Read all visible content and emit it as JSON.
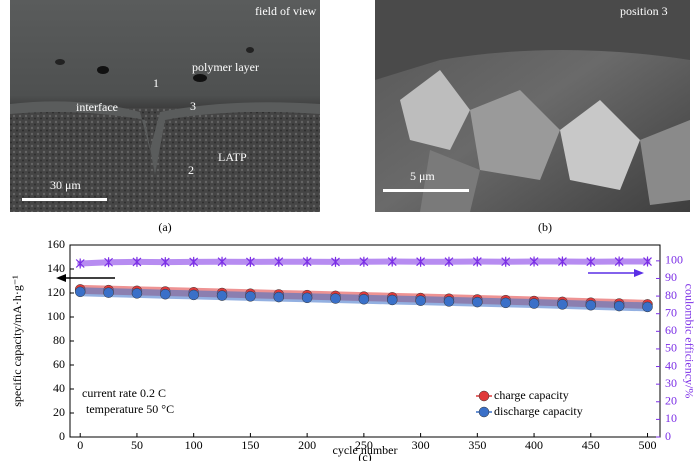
{
  "panel_a": {
    "caption": "(a)",
    "title": "field of view",
    "polymer": "polymer layer",
    "interface": "interface",
    "ceramic": "LATP",
    "marker_1": "1",
    "marker_2": "2",
    "marker_3": "3",
    "scale": "30 μm"
  },
  "panel_b": {
    "caption": "(b)",
    "title": "position 3",
    "scale": "5 μm"
  },
  "chart_data": {
    "type": "scatter",
    "caption": "(c)",
    "x_label": "cycle number",
    "y_label": "specific capacity/mA·h·g⁻¹",
    "y2_label": "coulombic efficiency/%",
    "annotations": [
      "current rate 0.2 C",
      "temperature 50 °C"
    ],
    "x": [
      0,
      25,
      50,
      75,
      100,
      125,
      150,
      175,
      200,
      225,
      250,
      275,
      300,
      325,
      350,
      375,
      400,
      425,
      450,
      475,
      500
    ],
    "series": [
      {
        "name": "charge capacity",
        "color": "#e03a3a",
        "values": [
          123,
          122.4,
          121.8,
          121.2,
          120.6,
          120,
          119.4,
          118.8,
          118.2,
          117.6,
          117,
          116.4,
          115.8,
          115.2,
          114.6,
          114,
          113.3,
          112.6,
          111.9,
          111.2,
          110.5
        ]
      },
      {
        "name": "discharge capacity",
        "color": "#3a70c8",
        "values": [
          121,
          120.3,
          119.7,
          119,
          118.4,
          117.8,
          117.2,
          116.6,
          116,
          115.4,
          114.8,
          114.2,
          113.6,
          113,
          112.4,
          111.8,
          111.2,
          110.5,
          109.8,
          109.1,
          108.4
        ]
      },
      {
        "color": "#7b2ee6",
        "axis": "y2",
        "values": [
          98.5,
          99.2,
          99.4,
          99.3,
          99.4,
          99.5,
          99.4,
          99.5,
          99.5,
          99.4,
          99.5,
          99.6,
          99.5,
          99.5,
          99.6,
          99.5,
          99.6,
          99.6,
          99.5,
          99.6,
          99.6
        ]
      }
    ],
    "xlim": [
      -9,
      511
    ],
    "xticks": [
      0,
      50,
      100,
      150,
      200,
      250,
      300,
      350,
      400,
      450,
      500
    ],
    "ylim": [
      0,
      160
    ],
    "yticks": [
      0,
      20,
      40,
      60,
      80,
      100,
      120,
      140,
      160
    ],
    "y2lim": [
      0,
      109
    ],
    "y2ticks": [
      0,
      10,
      20,
      30,
      40,
      50,
      60,
      70,
      80,
      90,
      100
    ]
  }
}
